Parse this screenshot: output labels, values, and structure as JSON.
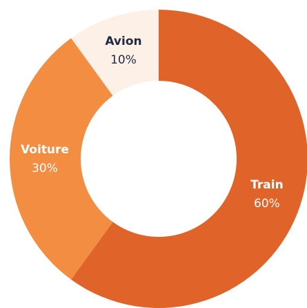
{
  "chart_data": {
    "type": "donut",
    "categories": [
      "Train",
      "Voiture",
      "Avion"
    ],
    "values": [
      60,
      30,
      10
    ],
    "value_labels": [
      "60%",
      "30%",
      "10%"
    ],
    "colors": [
      "#e0632a",
      "#f28d41",
      "#fdf0e7"
    ]
  }
}
